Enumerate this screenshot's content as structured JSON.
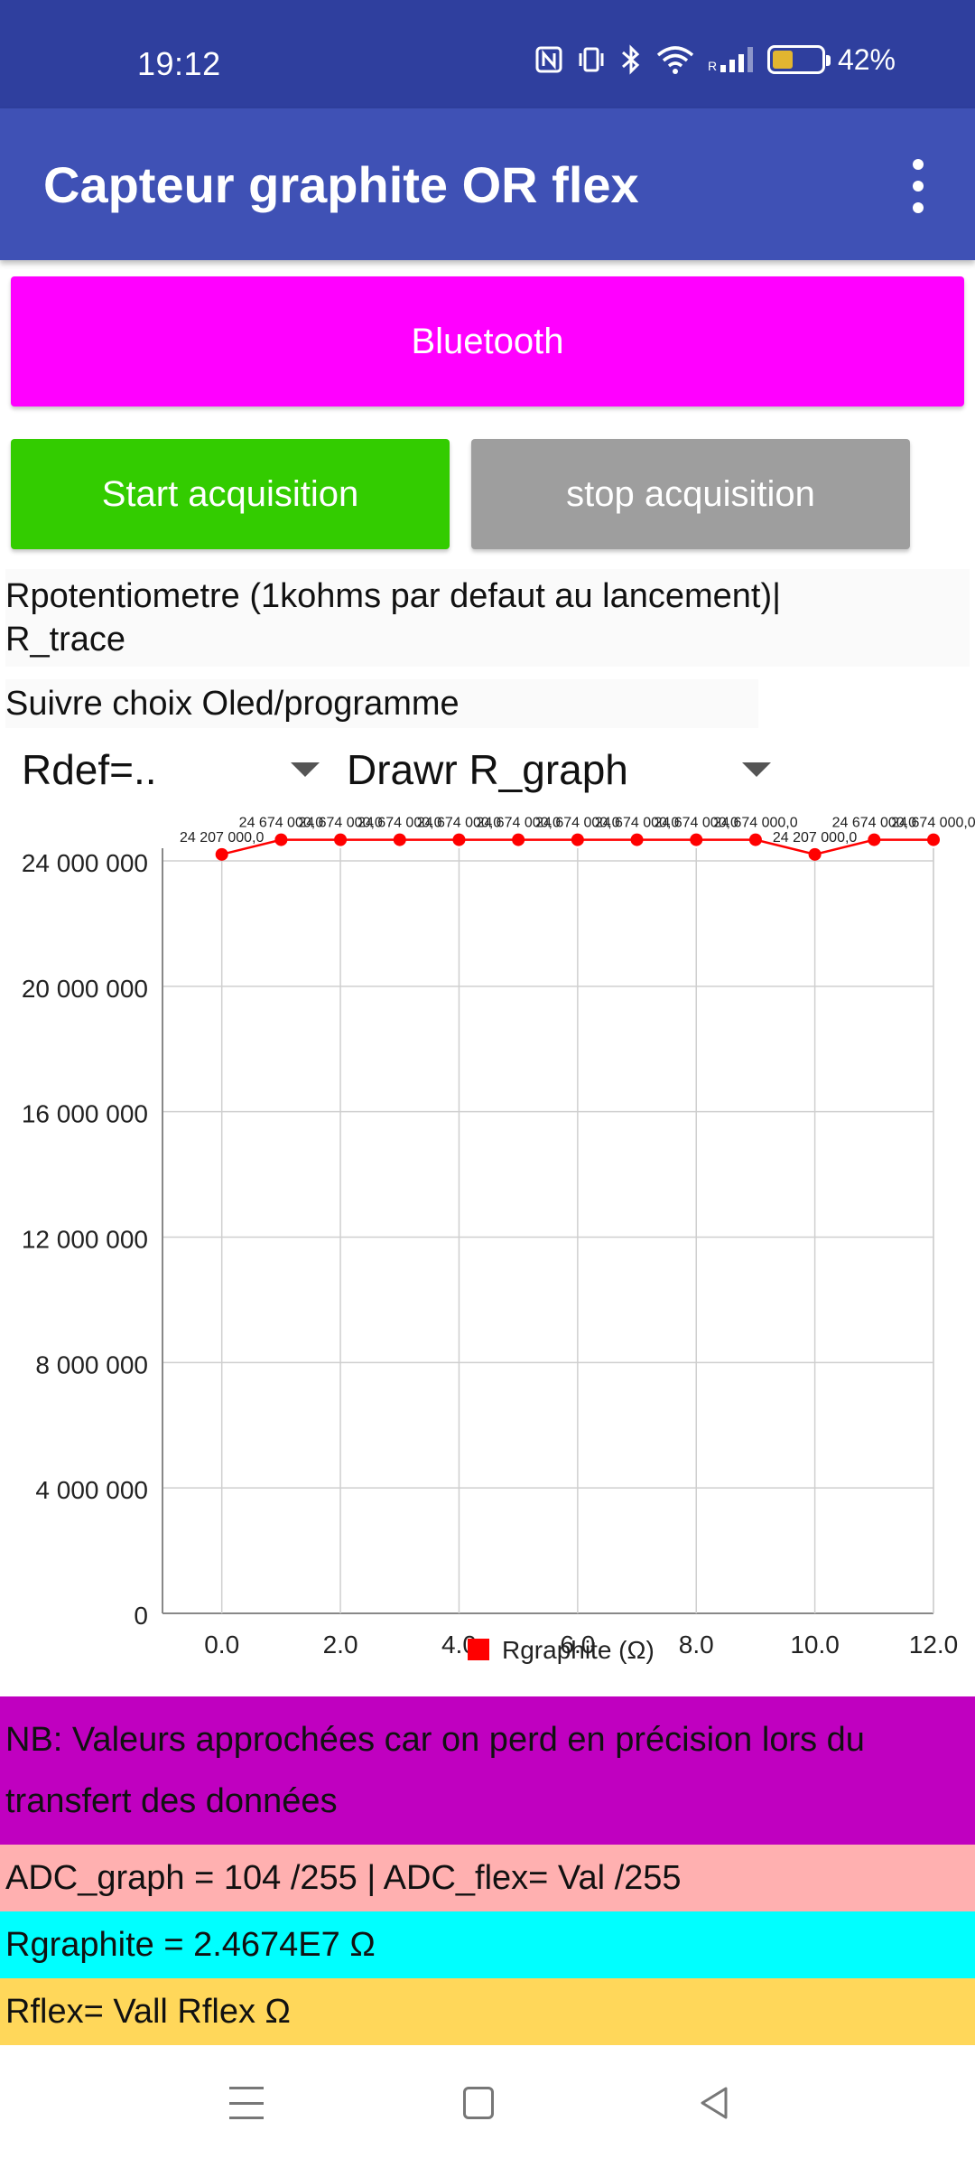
{
  "status_bar": {
    "time": "19:12",
    "battery_percent": "42%",
    "battery_level": 0.42,
    "icons": [
      "nfc-icon",
      "vibrate-icon",
      "bluetooth-icon",
      "wifi-icon",
      "signal-icon",
      "battery-icon"
    ]
  },
  "app_bar": {
    "title": "Capteur graphite OR flex",
    "menu_icon": "more-vert-icon"
  },
  "buttons": {
    "bluetooth": "Bluetooth",
    "start": "Start acquisition",
    "stop": "stop acquisition"
  },
  "colors": {
    "status_bar": "#2f3f9e",
    "app_bar": "#3f51b5",
    "bluetooth_button": "#ff00ff",
    "start_button": "#33cc00",
    "stop_button": "#9e9e9e",
    "series": "#ff0000",
    "nb_background": "#c000c0",
    "adc_background": "#ffb0b0",
    "rgraph_background": "#00ffff",
    "rflex_background": "#ffd75a"
  },
  "texts": {
    "rpot_line1": "Rpotentiometre (1kohms par defaut au lancement)|",
    "rpot_line2": "R_trace",
    "suivre": "Suivre choix Oled/programme"
  },
  "spinners": {
    "rdef_selected": "Rdef=..",
    "draw_selected": "Drawr R_graph"
  },
  "chart_data": {
    "type": "line",
    "x": [
      0,
      1,
      2,
      3,
      4,
      5,
      6,
      7,
      8,
      9,
      10,
      11,
      12
    ],
    "series": [
      {
        "name": "Rgraphite (Ω)",
        "values": [
          24207000,
          24674000,
          24674000,
          24674000,
          24674000,
          24674000,
          24674000,
          24674000,
          24674000,
          24674000,
          24207000,
          24674000,
          24674000
        ],
        "labels": [
          "24 207 000,0",
          "24 674 000,0",
          "24 674 000,0",
          "24 674 000,0",
          "24 674 000,0",
          "24 674 000,0",
          "24 674 000,0",
          "24 674 000,0",
          "24 674 000,0",
          "24 674 000,0",
          "24 207 000,0",
          "24 674 000,0",
          "24 674 000,0"
        ]
      }
    ],
    "xlim": [
      -1,
      12
    ],
    "ylim": [
      0,
      24000000
    ],
    "xticks": [
      0,
      2,
      4,
      6,
      8,
      10,
      12
    ],
    "xtick_labels": [
      "0.0",
      "2.0",
      "4.0",
      "6.0",
      "8.0",
      "10.0",
      "12.0"
    ],
    "yticks": [
      0,
      4000000,
      8000000,
      12000000,
      16000000,
      20000000,
      24000000
    ],
    "ytick_labels": [
      "0",
      "4 000 000",
      "8 000 000",
      "12 000 000",
      "16 000 000",
      "20 000 000",
      "24 000 000"
    ],
    "xlabel": "",
    "ylabel": "",
    "title": "",
    "grid": true,
    "legend": "bottom-center"
  },
  "info": {
    "nb": "NB: Valeurs approchées car on perd en précision lors du transfert des données",
    "adc": "ADC_graph = 104 /255  |  ADC_flex= Val /255",
    "rgraphite": "Rgraphite = 2.4674E7 Ω",
    "rflex": "Rflex=  Vall Rflex Ω"
  },
  "nav_bar": {
    "icons": [
      "recent-apps-icon",
      "home-icon",
      "back-icon"
    ]
  }
}
